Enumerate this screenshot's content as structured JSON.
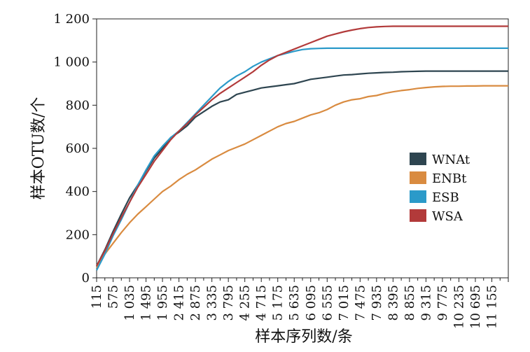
{
  "chart_data": {
    "type": "line",
    "title": "",
    "xlabel": "样本序列数/条",
    "ylabel": "样本OTU数/个",
    "ylim": [
      0,
      1200
    ],
    "xlim": [
      115,
      11615
    ],
    "x_tick_labels": [
      "115",
      "575",
      "1 035",
      "1 495",
      "1 955",
      "2 415",
      "2 875",
      "3 335",
      "3 795",
      "4 255",
      "4 715",
      "5 175",
      "5 635",
      "6 095",
      "6 555",
      "7 015",
      "7 475",
      "7 935",
      "8 395",
      "8 855",
      "9 315",
      "9 775",
      "10 235",
      "10 695",
      "11 155"
    ],
    "y_tick_labels": [
      "0",
      "200",
      "400",
      "600",
      "800",
      "1 000",
      "1 200"
    ],
    "y_ticks": [
      0,
      200,
      400,
      600,
      800,
      1000,
      1200
    ],
    "grid": false,
    "legend": "right",
    "x": [
      115,
      345,
      575,
      805,
      1035,
      1265,
      1495,
      1725,
      1955,
      2185,
      2415,
      2645,
      2875,
      3105,
      3335,
      3565,
      3795,
      4025,
      4255,
      4485,
      4715,
      4945,
      5175,
      5405,
      5635,
      5865,
      6095,
      6325,
      6555,
      6785,
      7015,
      7245,
      7475,
      7705,
      7935,
      8165,
      8395,
      8625,
      8855,
      9085,
      9315,
      9545,
      9775,
      10005,
      10235,
      10465,
      10695,
      10925,
      11155,
      11385,
      11615
    ],
    "series": [
      {
        "name": "WNAt",
        "color": "#2e4550",
        "values": [
          55,
          130,
          215,
          295,
          370,
          430,
          495,
          555,
          600,
          650,
          675,
          705,
          745,
          770,
          795,
          815,
          825,
          850,
          860,
          870,
          880,
          885,
          890,
          895,
          900,
          910,
          920,
          925,
          930,
          935,
          940,
          942,
          945,
          948,
          950,
          952,
          953,
          955,
          956,
          957,
          958,
          958,
          958,
          958,
          958,
          958,
          958,
          958,
          958,
          958,
          958
        ]
      },
      {
        "name": "ENBt",
        "color": "#d98b40",
        "values": [
          45,
          110,
          160,
          210,
          255,
          295,
          330,
          365,
          400,
          425,
          455,
          480,
          500,
          525,
          550,
          570,
          590,
          605,
          620,
          640,
          660,
          680,
          700,
          715,
          725,
          740,
          755,
          765,
          780,
          800,
          815,
          825,
          830,
          840,
          845,
          855,
          862,
          868,
          872,
          878,
          882,
          885,
          887,
          888,
          888,
          889,
          889,
          890,
          890,
          890,
          890
        ]
      },
      {
        "name": "ESB",
        "color": "#2b9ac9",
        "values": [
          35,
          110,
          195,
          270,
          350,
          430,
          500,
          565,
          610,
          650,
          680,
          720,
          760,
          800,
          840,
          880,
          910,
          935,
          955,
          980,
          1000,
          1015,
          1030,
          1040,
          1050,
          1058,
          1062,
          1063,
          1064,
          1064,
          1064,
          1064,
          1064,
          1064,
          1064,
          1064,
          1064,
          1064,
          1064,
          1064,
          1064,
          1064,
          1064,
          1064,
          1064,
          1064,
          1064,
          1064,
          1064,
          1064,
          1064
        ]
      },
      {
        "name": "WSA",
        "color": "#b23a3a",
        "values": [
          55,
          125,
          205,
          280,
          350,
          420,
          480,
          540,
          590,
          640,
          680,
          715,
          755,
          790,
          825,
          855,
          880,
          905,
          930,
          955,
          985,
          1010,
          1030,
          1045,
          1060,
          1075,
          1090,
          1105,
          1120,
          1130,
          1140,
          1148,
          1155,
          1160,
          1163,
          1165,
          1166,
          1166,
          1166,
          1166,
          1166,
          1166,
          1166,
          1166,
          1166,
          1166,
          1166,
          1166,
          1166,
          1166,
          1166
        ]
      }
    ]
  }
}
